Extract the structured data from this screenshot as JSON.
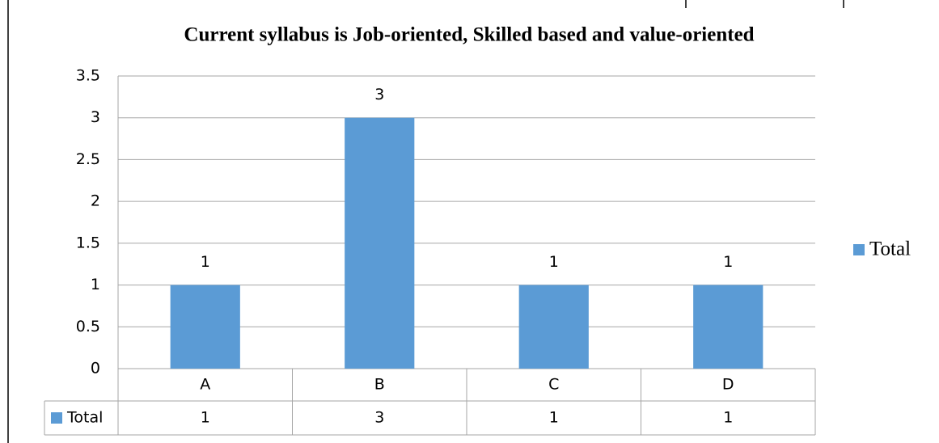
{
  "chart_data": {
    "type": "bar",
    "title": "Current syllabus is Job-oriented, Skilled based and value-oriented",
    "categories": [
      "A",
      "B",
      "C",
      "D"
    ],
    "series": [
      {
        "name": "Total",
        "color": "#5b9bd5",
        "values": [
          1,
          3,
          1,
          1
        ]
      }
    ],
    "ylim": [
      0,
      3.5
    ],
    "yticks": [
      0,
      0.5,
      1,
      1.5,
      2,
      2.5,
      3,
      3.5
    ],
    "grid": true,
    "legend": "right",
    "data_table": true
  }
}
